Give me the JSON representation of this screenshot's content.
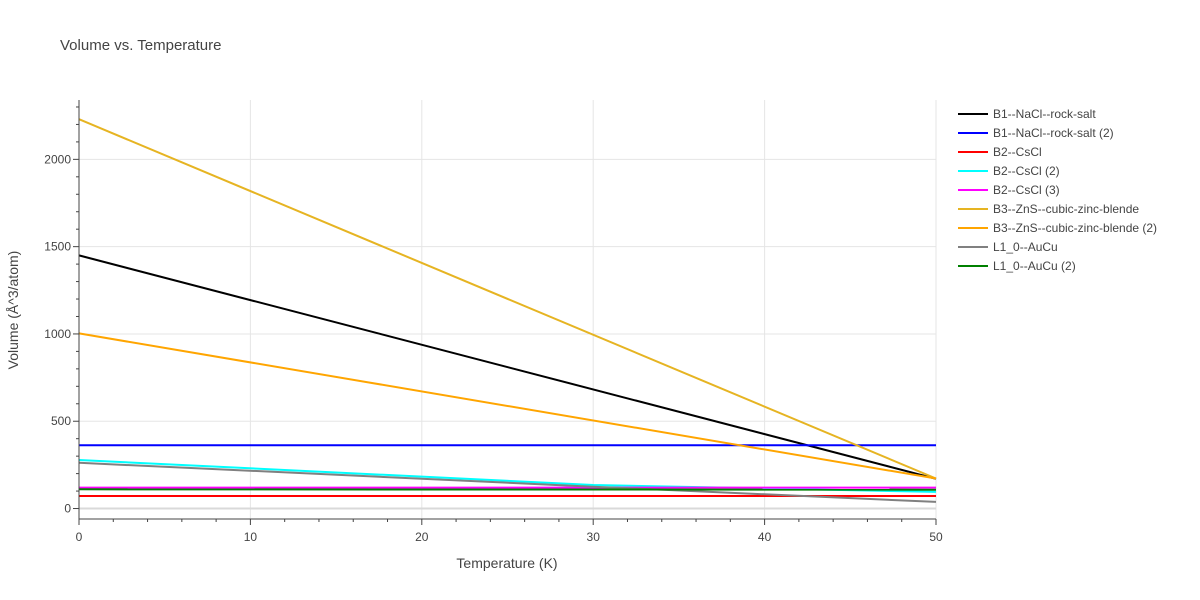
{
  "chart_data": {
    "type": "line",
    "title": "Volume vs. Temperature",
    "xlabel": "Temperature (K)",
    "ylabel": "Volume (Å^3/atom)",
    "xlim": [
      0,
      50
    ],
    "ylim": [
      -60,
      2340
    ],
    "x_ticks": [
      0,
      10,
      20,
      30,
      40,
      50
    ],
    "y_ticks": [
      0,
      500,
      1000,
      1500,
      2000
    ],
    "grid": true,
    "legend_position": "right",
    "series": [
      {
        "name": "B1--NaCl--rock-salt",
        "color": "#000000",
        "x": [
          0,
          50
        ],
        "y": [
          1450,
          170
        ]
      },
      {
        "name": "B1--NaCl--rock-salt (2)",
        "color": "#0000ff",
        "x": [
          0,
          50
        ],
        "y": [
          362,
          362
        ]
      },
      {
        "name": "B2--CsCl",
        "color": "#ff0000",
        "x": [
          0,
          50
        ],
        "y": [
          72,
          72
        ]
      },
      {
        "name": "B2--CsCl (2)",
        "color": "#00ffff",
        "x": [
          0,
          30,
          50
        ],
        "y": [
          278,
          135,
          95
        ]
      },
      {
        "name": "B2--CsCl (3)",
        "color": "#ff00ff",
        "x": [
          0,
          50
        ],
        "y": [
          120,
          120
        ]
      },
      {
        "name": "B3--ZnS--cubic-zinc-blende",
        "color": "#e6b422",
        "x": [
          0,
          50
        ],
        "y": [
          2230,
          172
        ]
      },
      {
        "name": "B3--ZnS--cubic-zinc-blende (2)",
        "color": "#ffa500",
        "x": [
          0,
          50
        ],
        "y": [
          1003,
          172
        ]
      },
      {
        "name": "L1_0--AuCu",
        "color": "#808080",
        "x": [
          0,
          30,
          50
        ],
        "y": [
          262,
          125,
          38
        ]
      },
      {
        "name": "L1_0--AuCu (2)",
        "color": "#008000",
        "x": [
          0,
          50
        ],
        "y": [
          110,
          108
        ]
      }
    ]
  }
}
